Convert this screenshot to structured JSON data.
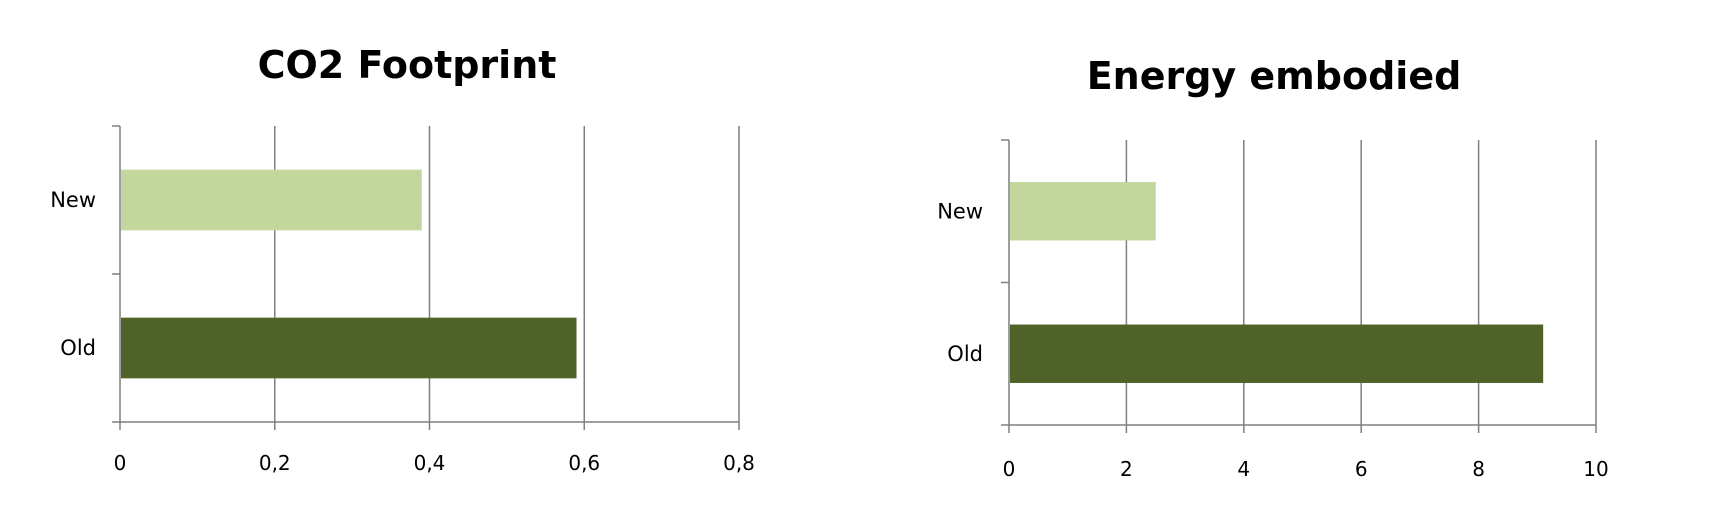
{
  "chart_data": [
    {
      "type": "bar",
      "orientation": "horizontal",
      "title": "CO2 Footprint",
      "categories": [
        "New",
        "Old"
      ],
      "values": [
        0.39,
        0.59
      ],
      "colors": [
        "#c3d69b",
        "#4f6228"
      ],
      "xlim": [
        0,
        0.8
      ],
      "ticks": [
        "0",
        "0,2",
        "0,4",
        "0,6",
        "0,8"
      ],
      "grid": "vertical",
      "legend": "none"
    },
    {
      "type": "bar",
      "orientation": "horizontal",
      "title": "Energy embodied",
      "categories": [
        "New",
        "Old"
      ],
      "values": [
        2.5,
        9.1
      ],
      "colors": [
        "#c3d69b",
        "#4f6228"
      ],
      "xlim": [
        0,
        10
      ],
      "ticks": [
        "0",
        "2",
        "4",
        "6",
        "8",
        "10"
      ],
      "grid": "vertical",
      "legend": "none"
    }
  ]
}
